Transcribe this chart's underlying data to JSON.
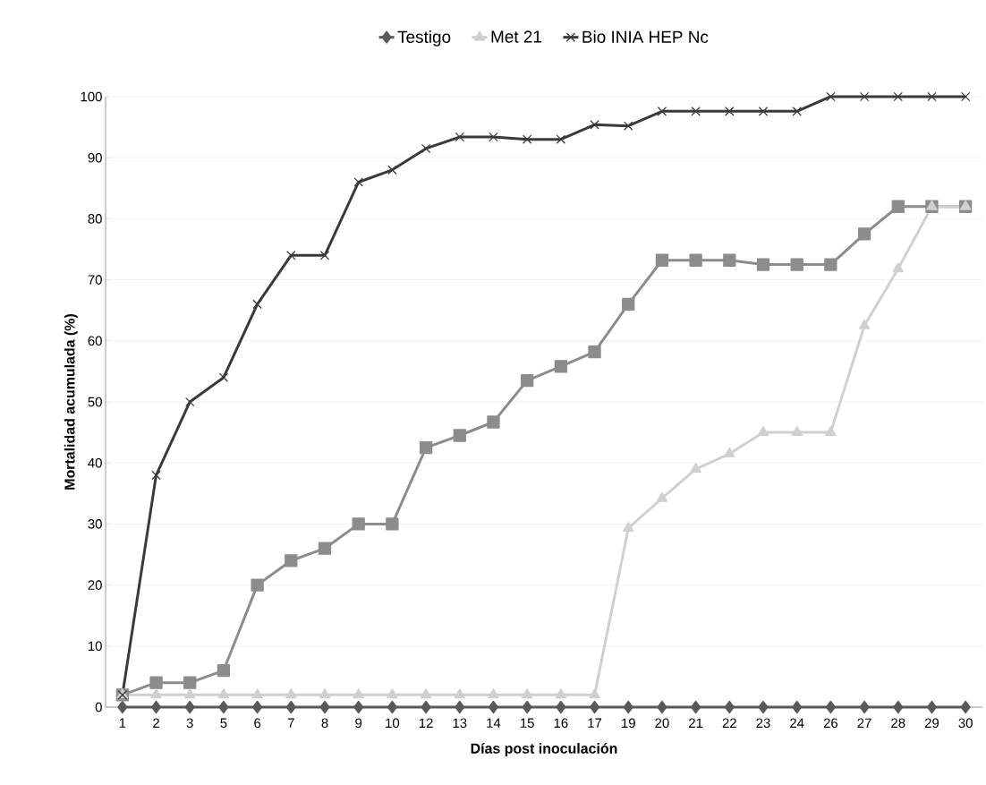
{
  "chart_data": {
    "type": "line",
    "xlabel": "Días post inoculación",
    "ylabel": "Mortalidad acumulada (%)",
    "categories": [
      "1",
      "2",
      "3",
      "5",
      "6",
      "7",
      "8",
      "9",
      "10",
      "12",
      "13",
      "14",
      "15",
      "16",
      "17",
      "19",
      "20",
      "21",
      "22",
      "23",
      "24",
      "26",
      "27",
      "28",
      "29",
      "30"
    ],
    "series": [
      {
        "name": "Testigo",
        "color": "#595959",
        "marker": "diamond",
        "values": [
          0,
          0,
          0,
          0,
          0,
          0,
          0,
          0,
          0,
          0,
          0,
          0,
          0,
          0,
          0,
          0,
          0,
          0,
          0,
          0,
          0,
          0,
          0,
          0,
          0,
          0
        ]
      },
      {
        "color": "#8c8c8c",
        "marker": "square",
        "values": [
          2,
          4,
          4,
          6,
          20,
          24,
          26,
          30,
          30,
          42.5,
          44.5,
          46.7,
          53.5,
          55.8,
          58.2,
          66,
          73.2,
          73.2,
          73.2,
          72.5,
          72.5,
          72.5,
          77.5,
          82,
          82,
          82
        ]
      },
      {
        "name": "Met 21",
        "color": "#d0d0d0",
        "marker": "triangle",
        "values": [
          2,
          2,
          2,
          2,
          2,
          2,
          2,
          2,
          2,
          2,
          2,
          2,
          2,
          2,
          2,
          29.3,
          34.2,
          39,
          41.5,
          45,
          45,
          45,
          62.5,
          71.8,
          82,
          82
        ]
      },
      {
        "name": "Bio INIA HEP Nc",
        "color": "#3a3a3a",
        "marker": "cross",
        "values": [
          2,
          38,
          50,
          54,
          66,
          74,
          74,
          86,
          88,
          91.5,
          93.4,
          93.4,
          93,
          93,
          95.4,
          95.2,
          97.6,
          97.6,
          97.6,
          97.6,
          97.6,
          100,
          100,
          100,
          100,
          100
        ]
      }
    ],
    "ylim": [
      0,
      100
    ],
    "yticks": [
      0,
      10,
      20,
      30,
      40,
      50,
      60,
      70,
      80,
      90,
      100
    ],
    "grid": "y",
    "legend": "top",
    "line_style": "solid"
  }
}
